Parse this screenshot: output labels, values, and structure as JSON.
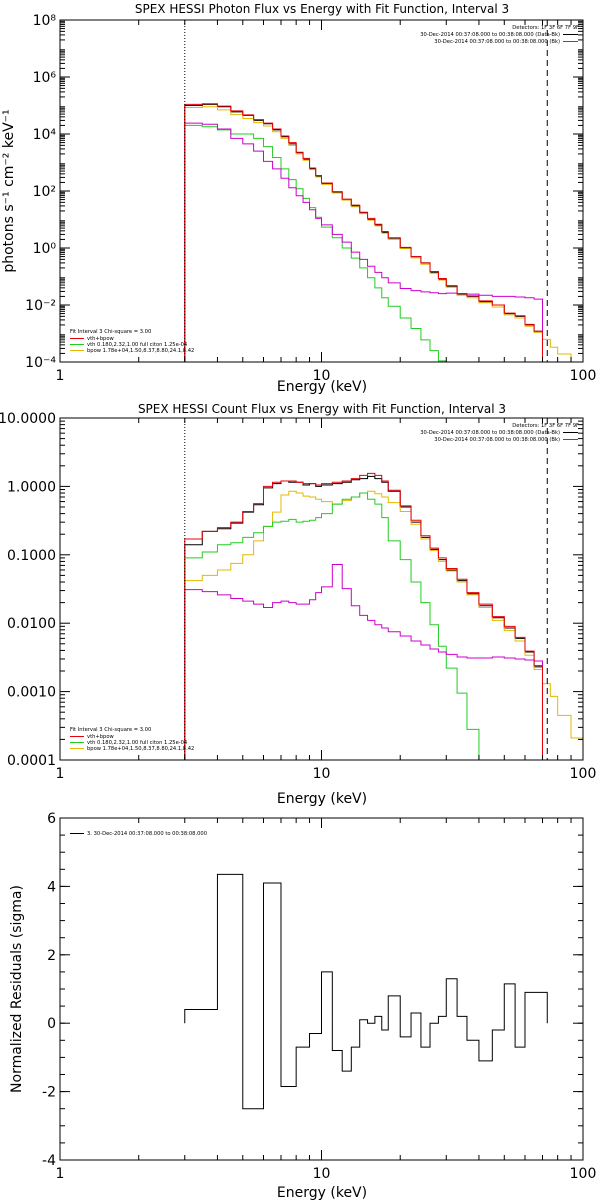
{
  "colors": {
    "data": "#000000",
    "total": "#e8000b",
    "vth": "#22cc22",
    "bpow": "#e5b800",
    "background": "#cc00cc",
    "axes": "#000000"
  },
  "chart_data": [
    {
      "type": "line",
      "title": "SPEX HESSI Photon Flux vs Energy with Fit Function, Interval 3",
      "xlabel": "Energy (keV)",
      "ylabel": "photons s⁻¹ cm⁻² keV⁻¹",
      "xscale": "log",
      "yscale": "log",
      "xlim": [
        1,
        100
      ],
      "ylim": [
        0.0001,
        100000000
      ],
      "xticks": [
        {
          "v": 1,
          "label": "1"
        },
        {
          "v": 10,
          "label": "10"
        },
        {
          "v": 100,
          "label": "100"
        }
      ],
      "yticks": [
        {
          "v": 0.0001,
          "label": "10⁻⁴"
        },
        {
          "v": 0.01,
          "label": "10⁻²"
        },
        {
          "v": 1,
          "label": "10⁰"
        },
        {
          "v": 100,
          "label": "10²"
        },
        {
          "v": 10000,
          "label": "10⁴"
        },
        {
          "v": 1000000,
          "label": "10⁶"
        },
        {
          "v": 100000000,
          "label": "10⁸"
        }
      ],
      "vlines": [
        {
          "x": 3.0,
          "style": "dotted"
        },
        {
          "x": 73,
          "style": "dashed"
        }
      ],
      "header_lines": [
        "Detectors: 1F 3F 6F 7F 9F",
        "30-Dec-2014 00:37:08.000 to 00:38:08.000 (Data-Bk)",
        "30-Dec-2014 00:37:08.000 to 00:38:08.000 (Bk)"
      ],
      "fit_header": "Fit Interval 3    Chi-square = 3.00",
      "legend": [
        {
          "label": "vth+bpow",
          "color": "#e8000b"
        },
        {
          "label": "vth 0.180,2.32,1.00  full citon 1.25e-04",
          "color": "#22cc22"
        },
        {
          "label": "bpow 1.78e+04,1.50,8.37,8.80,24.1,8.42",
          "color": "#e5b800"
        }
      ],
      "x_edges": [
        3.0,
        3.5,
        4.0,
        4.5,
        5.0,
        5.5,
        6.0,
        6.5,
        7.0,
        7.5,
        8.0,
        8.5,
        9.0,
        9.5,
        10.0,
        11.0,
        12.0,
        13.0,
        14.0,
        15.0,
        16.0,
        17.0,
        18.0,
        20.0,
        22.0,
        24.0,
        26.0,
        28.0,
        30.0,
        33.0,
        36.0,
        40.0,
        45.0,
        50.0,
        55.0,
        60.0,
        65.0,
        70.0,
        75.0,
        80.0,
        90.0,
        100.0
      ],
      "series": [
        {
          "name": "Data-Bk",
          "color": "#000000",
          "values": [
            100000,
            110000,
            90000,
            60000,
            45000,
            30000,
            23000,
            14000,
            8000,
            4500,
            2200,
            1300,
            600,
            330,
            180,
            90,
            50,
            30,
            17,
            10,
            6.4,
            3.5,
            2.2,
            1.0,
            0.5,
            0.3,
            0.14,
            0.08,
            0.045,
            0.023,
            0.02,
            0.013,
            0.01,
            0.005,
            0.004,
            0.002,
            0.0012
          ]
        },
        {
          "name": "vth+bpow",
          "color": "#e8000b",
          "values": [
            110000,
            115000,
            95000,
            65000,
            47000,
            32000,
            24000,
            15000,
            8500,
            5000,
            2300,
            1400,
            640,
            350,
            190,
            95,
            52,
            32,
            18,
            11,
            6.8,
            3.8,
            2.3,
            1.05,
            0.5,
            0.3,
            0.15,
            0.085,
            0.048,
            0.025,
            0.021,
            0.014,
            0.01,
            0.0052,
            0.0042,
            0.0021,
            0.0012
          ]
        },
        {
          "name": "bpow",
          "color": "#e5b800",
          "values": [
            85000,
            90000,
            70000,
            48000,
            35000,
            25000,
            19000,
            12000,
            7000,
            4000,
            2000,
            1200,
            560,
            310,
            170,
            85,
            48,
            28,
            16,
            9.5,
            6,
            3.3,
            2.0,
            0.95,
            0.45,
            0.27,
            0.13,
            0.075,
            0.042,
            0.022,
            0.018,
            0.012,
            0.0085,
            0.0045,
            0.0035,
            0.0018,
            0.0011,
            0.00062,
            0.00033,
            0.00019
          ]
        },
        {
          "name": "vth",
          "color": "#22cc22",
          "values": [
            20000,
            18000,
            14000,
            10000,
            10000,
            7000,
            3600,
            1500,
            600,
            250,
            120,
            55,
            26,
            12,
            5.4,
            2.3,
            1.0,
            0.44,
            0.2,
            0.09,
            0.04,
            0.018,
            0.009,
            0.0035,
            0.0015,
            0.0006,
            0.00025,
            0.00011,
            5e-05
          ]
        },
        {
          "name": "Bk",
          "color": "#cc00cc",
          "values": [
            24000,
            22000,
            15000,
            7000,
            4500,
            2500,
            1100,
            600,
            280,
            130,
            68,
            40,
            22,
            11,
            6.5,
            3.0,
            1.6,
            0.72,
            0.4,
            0.23,
            0.14,
            0.09,
            0.06,
            0.038,
            0.032,
            0.029,
            0.027,
            0.025,
            0.026,
            0.025,
            0.024,
            0.022,
            0.02,
            0.02,
            0.019,
            0.018,
            0.016
          ]
        }
      ]
    },
    {
      "type": "line",
      "title": "SPEX HESSI Count Flux vs Energy with Fit Function, Interval 3",
      "xlabel": "Energy (keV)",
      "ylabel": "",
      "xscale": "log",
      "yscale": "log",
      "xlim": [
        1,
        100
      ],
      "ylim": [
        0.0001,
        10
      ],
      "xticks": [
        {
          "v": 1,
          "label": "1"
        },
        {
          "v": 10,
          "label": "10"
        },
        {
          "v": 100,
          "label": "100"
        }
      ],
      "yticks": [
        {
          "v": 0.0001,
          "label": "0.0001"
        },
        {
          "v": 0.001,
          "label": "0.0010"
        },
        {
          "v": 0.01,
          "label": "0.0100"
        },
        {
          "v": 0.1,
          "label": "0.1000"
        },
        {
          "v": 1,
          "label": "1.0000"
        },
        {
          "v": 10,
          "label": "10.0000"
        }
      ],
      "vlines": [
        {
          "x": 3.0,
          "style": "dotted"
        },
        {
          "x": 73,
          "style": "dashed"
        }
      ],
      "header_lines": [
        "Detectors: 1F 3F 6F 7F 9F",
        "30-Dec-2014 00:37:08.000 to 00:38:08.000 (Data-Bk)",
        "30-Dec-2014 00:37:08.000 to 00:38:08.000 (Bk)"
      ],
      "fit_header": "Fit Interval 3    Chi-square = 3.00",
      "legend": [
        {
          "label": "vth+bpow",
          "color": "#e8000b"
        },
        {
          "label": "vth 0.180,2.32,1.00  full citon 1.25e-04",
          "color": "#22cc22"
        },
        {
          "label": "bpow 1.78e+04,1.50,8.37,8.80,24.1,8.42",
          "color": "#e5b800"
        }
      ],
      "x_edges": [
        3.0,
        3.5,
        4.0,
        4.5,
        5.0,
        5.5,
        6.0,
        6.5,
        7.0,
        7.5,
        8.0,
        8.5,
        9.0,
        9.5,
        10.0,
        11.0,
        12.0,
        13.0,
        14.0,
        15.0,
        16.0,
        17.0,
        18.0,
        20.0,
        22.0,
        24.0,
        26.0,
        28.0,
        30.0,
        33.0,
        36.0,
        40.0,
        45.0,
        50.0,
        55.0,
        60.0,
        65.0,
        70.0,
        75.0,
        80.0,
        90.0,
        100.0
      ],
      "series": [
        {
          "name": "Data-Bk",
          "color": "#000000",
          "values": [
            0.14,
            0.22,
            0.24,
            0.29,
            0.42,
            0.54,
            0.95,
            1.1,
            1.2,
            1.15,
            1.15,
            1.05,
            1.1,
            1.0,
            1.05,
            1.1,
            1.15,
            1.25,
            1.3,
            1.4,
            1.3,
            1.15,
            0.85,
            0.5,
            0.3,
            0.18,
            0.12,
            0.085,
            0.06,
            0.042,
            0.027,
            0.018,
            0.012,
            0.0085,
            0.006,
            0.0038,
            0.0023
          ]
        },
        {
          "name": "vth+bpow",
          "color": "#e8000b",
          "values": [
            0.17,
            0.22,
            0.25,
            0.3,
            0.43,
            0.56,
            1.0,
            1.15,
            1.2,
            1.2,
            1.15,
            1.1,
            1.1,
            1.05,
            1.1,
            1.15,
            1.2,
            1.3,
            1.45,
            1.55,
            1.45,
            1.2,
            0.88,
            0.52,
            0.32,
            0.19,
            0.125,
            0.09,
            0.063,
            0.044,
            0.028,
            0.019,
            0.0125,
            0.009,
            0.0062,
            0.0039,
            0.0024
          ]
        },
        {
          "name": "bpow",
          "color": "#e5b800",
          "values": [
            0.042,
            0.05,
            0.06,
            0.075,
            0.1,
            0.16,
            0.26,
            0.42,
            0.75,
            0.85,
            0.8,
            0.72,
            0.7,
            0.65,
            0.6,
            0.55,
            0.62,
            0.7,
            0.8,
            0.85,
            0.78,
            0.7,
            0.58,
            0.43,
            0.28,
            0.17,
            0.115,
            0.08,
            0.058,
            0.04,
            0.026,
            0.017,
            0.011,
            0.0078,
            0.0055,
            0.0034,
            0.0021,
            0.0013,
            0.00085,
            0.00045,
            0.00021
          ]
        },
        {
          "name": "vth",
          "color": "#22cc22",
          "values": [
            0.09,
            0.11,
            0.14,
            0.15,
            0.18,
            0.21,
            0.26,
            0.3,
            0.31,
            0.33,
            0.3,
            0.31,
            0.32,
            0.35,
            0.4,
            0.55,
            0.65,
            0.7,
            0.8,
            0.65,
            0.55,
            0.35,
            0.16,
            0.085,
            0.04,
            0.02,
            0.0095,
            0.0046,
            0.0022,
            0.00095,
            0.00028
          ]
        },
        {
          "name": "Bk",
          "color": "#cc00cc",
          "values": [
            0.031,
            0.029,
            0.026,
            0.023,
            0.021,
            0.019,
            0.017,
            0.02,
            0.021,
            0.02,
            0.019,
            0.019,
            0.022,
            0.028,
            0.034,
            0.072,
            0.032,
            0.018,
            0.013,
            0.011,
            0.0095,
            0.0085,
            0.0075,
            0.0065,
            0.0055,
            0.0048,
            0.0042,
            0.0038,
            0.0035,
            0.0032,
            0.0031,
            0.0031,
            0.0032,
            0.0031,
            0.003,
            0.0029,
            0.0028
          ]
        }
      ]
    },
    {
      "type": "line",
      "title": "",
      "xlabel": "Energy (keV)",
      "ylabel": "Normalized Residuals (sigma)",
      "xscale": "log",
      "yscale": "linear",
      "xlim": [
        1,
        100
      ],
      "ylim": [
        -4,
        6
      ],
      "xticks": [
        {
          "v": 1,
          "label": "1"
        },
        {
          "v": 10,
          "label": "10"
        },
        {
          "v": 100,
          "label": "100"
        }
      ],
      "yticks": [
        {
          "v": -4,
          "label": "-4"
        },
        {
          "v": -2,
          "label": "-2"
        },
        {
          "v": 0,
          "label": "0"
        },
        {
          "v": 2,
          "label": "2"
        },
        {
          "v": 4,
          "label": "4"
        },
        {
          "v": 6,
          "label": "6"
        }
      ],
      "legend": [
        {
          "label": "3. 30-Dec-2014 00:37:08.000 to 00:38:08.000",
          "color": "#000000"
        }
      ],
      "x_edges": [
        3.0,
        4.0,
        5.0,
        6.0,
        7.0,
        8.0,
        9.0,
        10.0,
        11.0,
        12.0,
        13.0,
        14.0,
        15.0,
        16.0,
        17.0,
        18.0,
        20.0,
        22.0,
        24.0,
        26.0,
        28.0,
        30.0,
        33.0,
        36.0,
        40.0,
        45.0,
        50.0,
        55.0,
        60.0,
        65.0,
        73.0
      ],
      "series": [
        {
          "name": "residuals",
          "color": "#000000",
          "values": [
            0.4,
            4.35,
            -2.5,
            4.1,
            -1.85,
            -0.7,
            -0.3,
            1.5,
            -0.8,
            -1.4,
            -0.7,
            0.1,
            0.0,
            0.2,
            -0.2,
            0.8,
            -0.4,
            0.3,
            -0.7,
            0.0,
            0.2,
            1.3,
            0.2,
            -0.5,
            -1.1,
            -0.2,
            1.15,
            -0.7,
            0.9,
            0.9
          ]
        }
      ]
    }
  ]
}
